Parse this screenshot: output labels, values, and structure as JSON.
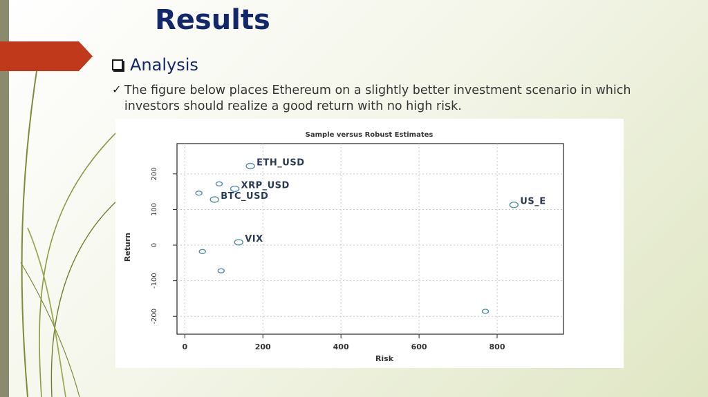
{
  "slide": {
    "title": "Results",
    "bullet_heading": "Analysis",
    "body_text": "The figure below places Ethereum on a slightly better investment scenario in which investors should realize a good return with no high risk.",
    "accent_color": "#c0391b",
    "title_color": "#13286b"
  },
  "chart_data": {
    "type": "scatter",
    "title": "Sample versus Robust Estimates",
    "xlabel": "Risk",
    "ylabel": "Return",
    "xticks": [
      0,
      200,
      400,
      600,
      800
    ],
    "yticks": [
      -200,
      -100,
      0,
      100,
      200
    ],
    "xlim": [
      -20,
      970
    ],
    "ylim": [
      -250,
      285
    ],
    "grid": true,
    "points": [
      {
        "label": "ETH_USD",
        "x": 168,
        "y": 222
      },
      {
        "label": "",
        "x": 88,
        "y": 172
      },
      {
        "label": "XRP_USD",
        "x": 128,
        "y": 158
      },
      {
        "label": "",
        "x": 36,
        "y": 146
      },
      {
        "label": "BTC_USD",
        "x": 76,
        "y": 128
      },
      {
        "label": "US_E",
        "x": 843,
        "y": 113
      },
      {
        "label": "VIX",
        "x": 138,
        "y": 8
      },
      {
        "label": "",
        "x": 45,
        "y": -18
      },
      {
        "label": "",
        "x": 93,
        "y": -72
      },
      {
        "label": "",
        "x": 770,
        "y": -186
      }
    ]
  }
}
